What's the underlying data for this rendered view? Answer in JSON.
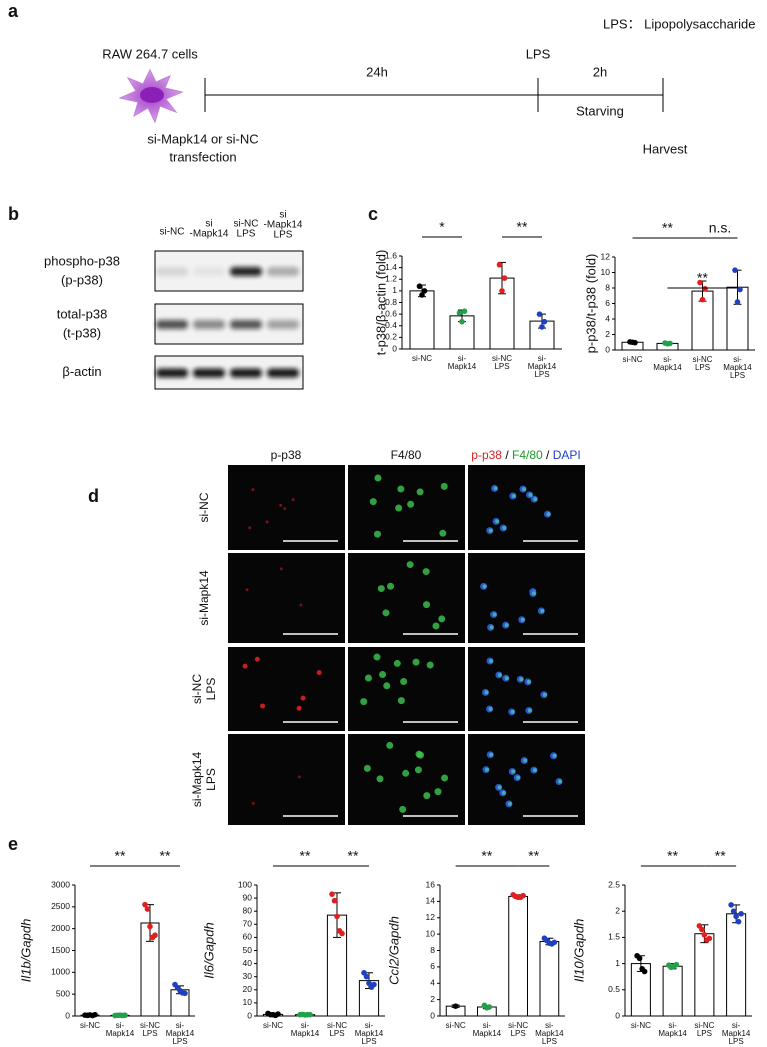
{
  "panel_a": {
    "label": "a",
    "legend": "LPS： Lipopolysaccharide",
    "cells": "RAW 264.7 cells",
    "interval_1": "24h",
    "lps": "LPS",
    "interval_2": "2h",
    "starving": "Starving",
    "transfection": [
      "si-Mapk14 or si-NC",
      "transfection"
    ],
    "harvest": "Harvest"
  },
  "panel_b": {
    "label": "b",
    "lanes": [
      [
        "si-NC"
      ],
      [
        "si",
        "-Mapk14"
      ],
      [
        "si-NC",
        "LPS"
      ],
      [
        "si",
        "-Mapk14",
        "LPS"
      ]
    ],
    "rows": [
      [
        "phospho-p38",
        "(p-p38)"
      ],
      [
        "total-p38",
        "(t-p38)"
      ],
      [
        "β-actin"
      ]
    ]
  },
  "panel_c": {
    "label": "c"
  },
  "panel_d": {
    "label": "d",
    "columns": [
      {
        "text": "p-p38",
        "color": "#e02020"
      },
      {
        "text": "F4/80",
        "color": "#1a9a2a"
      }
    ],
    "merge": [
      {
        "text": "p-p38",
        "color": "#e02020"
      },
      {
        "text": " / ",
        "color": "#000000"
      },
      {
        "text": "F4/80",
        "color": "#1a9a2a"
      },
      {
        "text": " / ",
        "color": "#000000"
      },
      {
        "text": "DAPI",
        "color": "#1f3fd0"
      }
    ],
    "rows": [
      [
        "si-NC"
      ],
      [
        "si-Mapk14"
      ],
      [
        "si-NC",
        "LPS"
      ],
      [
        "si-Mapk14",
        "LPS"
      ]
    ]
  },
  "panel_e": {
    "label": "e"
  },
  "chart_data": [
    {
      "type": "bar",
      "y_label": "t-p38/β-actin (fold)",
      "y_label_italic": false,
      "categories": [
        [
          "si-NC"
        ],
        [
          "si-",
          "Mapk14"
        ],
        [
          "si-NC",
          "LPS"
        ],
        [
          "si-",
          "Mapk14",
          "LPS"
        ]
      ],
      "values": [
        1.0,
        0.57,
        1.22,
        0.48
      ],
      "errors": [
        0.1,
        0.1,
        0.27,
        0.12
      ],
      "points": [
        [
          1.08,
          0.93,
          1.0
        ],
        [
          0.62,
          0.47,
          0.65
        ],
        [
          1.45,
          1.0,
          1.22
        ],
        [
          0.6,
          0.38,
          0.47
        ]
      ],
      "colors": [
        "#000000",
        "#22a04a",
        "#e02020",
        "#2040c0"
      ],
      "ylim": [
        0,
        1.6
      ],
      "yticks": [
        0,
        0.2,
        0.4,
        0.6,
        0.8,
        1,
        1.2,
        1.4,
        1.6
      ],
      "significance": [
        {
          "label": "*",
          "from": 0,
          "to": 1
        },
        {
          "label": "**",
          "from": 2,
          "to": 3
        }
      ]
    },
    {
      "type": "bar",
      "y_label": "p-p38/t-p38 (fold)",
      "y_label_italic": false,
      "categories": [
        [
          "si-NC"
        ],
        [
          "si-",
          "Mapk14"
        ],
        [
          "si-NC",
          "LPS"
        ],
        [
          "si-",
          "Mapk14",
          "LPS"
        ]
      ],
      "values": [
        1.0,
        0.85,
        7.6,
        8.1
      ],
      "errors": [
        0.15,
        0.1,
        1.3,
        2.2
      ],
      "points": [
        [
          1.05,
          1.0,
          0.95
        ],
        [
          0.9,
          0.8,
          0.85
        ],
        [
          8.7,
          6.5,
          7.9
        ],
        [
          10.3,
          6.2,
          7.8
        ]
      ],
      "colors": [
        "#000000",
        "#22a04a",
        "#e02020",
        "#2040c0"
      ],
      "ylim": [
        0,
        12
      ],
      "yticks": [
        0,
        2,
        4,
        6,
        8,
        10,
        12
      ],
      "significance": [
        {
          "label": "**",
          "from": 0,
          "to": 2
        },
        {
          "label": "n.s.",
          "from": 2,
          "to": 3
        },
        {
          "label": "**",
          "from": 1,
          "to": 3
        }
      ]
    },
    {
      "type": "bar",
      "y_label": "Il1b/Gapdh",
      "y_label_italic": true,
      "categories": [
        [
          "si-NC"
        ],
        [
          "si-",
          "Mapk14"
        ],
        [
          "si-NC",
          "LPS"
        ],
        [
          "si-",
          "Mapk14",
          "LPS"
        ]
      ],
      "values": [
        20,
        15,
        2130,
        600
      ],
      "errors": [
        10,
        8,
        420,
        90
      ],
      "points": [
        [
          20,
          15,
          25,
          10,
          30
        ],
        [
          10,
          15,
          20,
          12,
          18
        ],
        [
          2550,
          2450,
          2050,
          1800,
          1850
        ],
        [
          720,
          650,
          580,
          530,
          520
        ]
      ],
      "colors": [
        "#000000",
        "#22a04a",
        "#e02020",
        "#2040c0"
      ],
      "ylim": [
        0,
        3000
      ],
      "yticks": [
        0,
        500,
        1000,
        1500,
        2000,
        2500,
        3000
      ],
      "significance": [
        {
          "label": "**",
          "from": 0,
          "to": 2
        },
        {
          "label": "**",
          "from": 2,
          "to": 3
        }
      ]
    },
    {
      "type": "bar",
      "y_label": "Il6/Gapdh",
      "y_label_italic": true,
      "categories": [
        [
          "si-NC"
        ],
        [
          "si-",
          "Mapk14"
        ],
        [
          "si-NC",
          "LPS"
        ],
        [
          "si-",
          "Mapk14",
          "LPS"
        ]
      ],
      "values": [
        1.2,
        1.0,
        77,
        27
      ],
      "errors": [
        1,
        0.3,
        17,
        6
      ],
      "points": [
        [
          2,
          1,
          1,
          0.5,
          1.5
        ],
        [
          1,
          1.2,
          0.8,
          1,
          1
        ],
        [
          93,
          88,
          76,
          65,
          63
        ],
        [
          33,
          30,
          25,
          22,
          24
        ]
      ],
      "colors": [
        "#000000",
        "#22a04a",
        "#e02020",
        "#2040c0"
      ],
      "ylim": [
        0,
        100
      ],
      "yticks": [
        0,
        10,
        20,
        30,
        40,
        50,
        60,
        70,
        80,
        90,
        100
      ],
      "significance": [
        {
          "label": "**",
          "from": 0,
          "to": 2
        },
        {
          "label": "**",
          "from": 2,
          "to": 3
        }
      ]
    },
    {
      "type": "bar",
      "y_label": "Ccl2/Gapdh",
      "y_label_italic": true,
      "categories": [
        [
          "si-NC"
        ],
        [
          "si-",
          "Mapk14"
        ],
        [
          "si-NC",
          "LPS"
        ],
        [
          "si-",
          "Mapk14",
          "LPS"
        ]
      ],
      "values": [
        1.2,
        1.1,
        14.6,
        9.1
      ],
      "errors": [
        0.15,
        0.2,
        0.2,
        0.4
      ],
      "points": [
        [
          1.2
        ],
        [
          1.3,
          1.0,
          1.1
        ],
        [
          14.8,
          14.6,
          14.5,
          14.5,
          14.7
        ],
        [
          9.5,
          9.2,
          8.9,
          8.8,
          9.0
        ]
      ],
      "colors": [
        "#000000",
        "#22a04a",
        "#e02020",
        "#2040c0"
      ],
      "ylim": [
        0,
        16
      ],
      "yticks": [
        0,
        2,
        4,
        6,
        8,
        10,
        12,
        14,
        16
      ],
      "significance": [
        {
          "label": "**",
          "from": 0,
          "to": 2
        },
        {
          "label": "**",
          "from": 2,
          "to": 3
        }
      ]
    },
    {
      "type": "bar",
      "y_label": "Il10/Gapdh",
      "y_label_italic": true,
      "categories": [
        [
          "si-NC"
        ],
        [
          "si-",
          "Mapk14"
        ],
        [
          "si-NC",
          "LPS"
        ],
        [
          "si-",
          "Mapk14",
          "LPS"
        ]
      ],
      "values": [
        1.0,
        0.95,
        1.57,
        1.95
      ],
      "errors": [
        0.15,
        0.05,
        0.17,
        0.17
      ],
      "points": [
        [
          1.15,
          1.1,
          0.9,
          0.85
        ],
        [
          0.97,
          0.93,
          0.95,
          0.98
        ],
        [
          1.72,
          1.65,
          1.55,
          1.45,
          1.48
        ],
        [
          2.12,
          2.0,
          1.9,
          1.8,
          1.95
        ]
      ],
      "colors": [
        "#000000",
        "#22a04a",
        "#e02020",
        "#2040c0"
      ],
      "ylim": [
        0,
        2.5
      ],
      "yticks": [
        0,
        0.5,
        1,
        1.5,
        2,
        2.5
      ],
      "significance": [
        {
          "label": "**",
          "from": 0,
          "to": 2
        },
        {
          "label": "**",
          "from": 2,
          "to": 3
        }
      ]
    }
  ]
}
